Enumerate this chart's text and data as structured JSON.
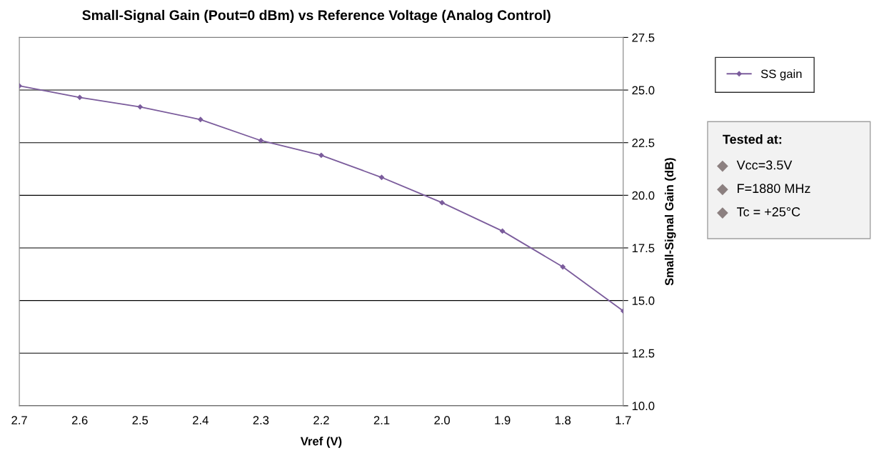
{
  "chart_data": {
    "type": "line",
    "title": "Small-Signal Gain (Pout=0 dBm) vs Reference Voltage (Analog Control)",
    "xlabel": "Vref (V)",
    "ylabel": "Small-Signal Gain (dB)",
    "x": [
      2.7,
      2.6,
      2.5,
      2.4,
      2.3,
      2.2,
      2.1,
      2.0,
      1.9,
      1.8,
      1.7
    ],
    "series": [
      {
        "name": "SS gain",
        "color": "#7b5c9c",
        "values": [
          25.2,
          24.65,
          24.2,
          23.6,
          22.6,
          21.9,
          20.85,
          19.65,
          18.3,
          16.6,
          14.5
        ]
      }
    ],
    "xlim": [
      2.7,
      1.7
    ],
    "xticks": [
      2.7,
      2.6,
      2.5,
      2.4,
      2.3,
      2.2,
      2.1,
      {
        "value": 2.0,
        "label": "2.0"
      },
      1.9,
      1.8,
      1.7
    ],
    "ylim": [
      10.0,
      27.5
    ],
    "yticks": [
      {
        "value": 10,
        "label": "10.0"
      },
      12.5,
      {
        "value": 15,
        "label": "15.0"
      },
      17.5,
      {
        "value": 20,
        "label": "20.0"
      },
      22.5,
      {
        "value": 25,
        "label": "25.0"
      },
      27.5
    ],
    "grid": "y",
    "legend": "right",
    "marker": "diamond",
    "line_style": "solid",
    "annotations": [
      "Tested at:",
      "Vcc=3.5V",
      "F=1880 MHz",
      "Tc = +25°C"
    ]
  }
}
